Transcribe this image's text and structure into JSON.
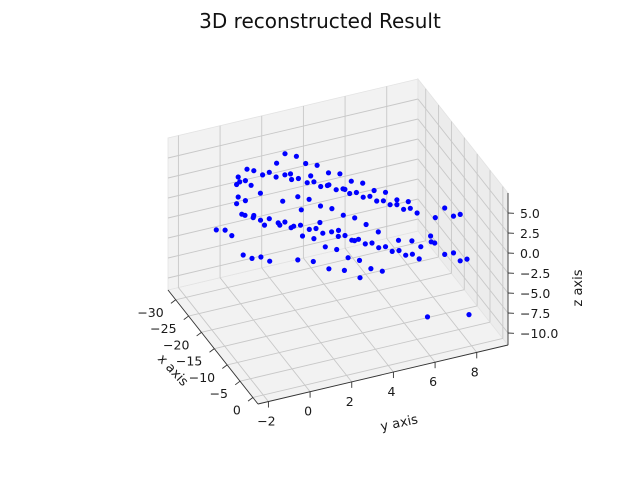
{
  "chart_data": {
    "type": "scatter",
    "projection": "3d",
    "title": "3D reconstructed Result",
    "xlabel": "x axis",
    "ylabel": "y axis",
    "zlabel": "z axis",
    "xlim": [
      -33,
      2
    ],
    "ylim": [
      -2.5,
      9.5
    ],
    "zlim": [
      -11.5,
      7.5
    ],
    "xticks": [
      "−30",
      "−25",
      "−20",
      "−15",
      "−10",
      "−5",
      "0"
    ],
    "yticks": [
      "−2",
      "0",
      "2",
      "4",
      "6",
      "8"
    ],
    "zticks": [
      "5.0",
      "2.5",
      "0.0",
      "−2.5",
      "−5.0",
      "−7.5",
      "−10.0"
    ],
    "grid": true,
    "marker_color": "#0000ff",
    "pane_color": "#f2f2f2",
    "series": [
      {
        "points": [
          [
            -29,
            0.8,
            3.2
          ],
          [
            -28,
            1.0,
            3.3
          ],
          [
            -27,
            1.3,
            3.0
          ],
          [
            -26,
            1.5,
            3.6
          ],
          [
            -25,
            1.7,
            3.3
          ],
          [
            -24,
            2.0,
            3.8
          ],
          [
            -23,
            2.2,
            3.5
          ],
          [
            -22,
            2.4,
            3.9
          ],
          [
            -21,
            2.7,
            3.6
          ],
          [
            -20,
            2.9,
            4.0
          ],
          [
            -19,
            3.1,
            3.7
          ],
          [
            -18,
            3.3,
            4.1
          ],
          [
            -17,
            3.6,
            3.8
          ],
          [
            -16,
            3.8,
            4.2
          ],
          [
            -15,
            4.0,
            3.9
          ],
          [
            -14,
            4.2,
            4.3
          ],
          [
            -13,
            4.4,
            4.0
          ],
          [
            -12,
            4.6,
            4.4
          ],
          [
            -11,
            4.8,
            4.1
          ],
          [
            -10,
            5.0,
            4.4
          ],
          [
            -9,
            5.2,
            4.2
          ],
          [
            -8,
            5.4,
            4.5
          ],
          [
            -7,
            5.6,
            4.2
          ],
          [
            -6,
            5.8,
            4.6
          ],
          [
            -5,
            6.0,
            4.3
          ],
          [
            -28,
            2.5,
            4.5
          ],
          [
            -26,
            2.8,
            4.8
          ],
          [
            -24,
            3.0,
            4.6
          ],
          [
            -22,
            3.3,
            5.0
          ],
          [
            -20,
            3.6,
            4.7
          ],
          [
            -18,
            3.9,
            5.2
          ],
          [
            -16,
            4.2,
            4.9
          ],
          [
            -14,
            4.5,
            5.3
          ],
          [
            -12,
            4.8,
            5.0
          ],
          [
            -10,
            5.1,
            5.4
          ],
          [
            -8,
            5.4,
            5.1
          ],
          [
            -6,
            5.7,
            5.5
          ],
          [
            -27,
            0.2,
            2.8
          ],
          [
            -25,
            0.5,
            3.0
          ],
          [
            -23,
            0.7,
            2.7
          ],
          [
            -19,
            2.0,
            3.1
          ],
          [
            -17,
            2.3,
            3.4
          ],
          [
            -15,
            2.6,
            3.2
          ],
          [
            -13,
            2.9,
            3.5
          ],
          [
            -11,
            3.2,
            3.3
          ],
          [
            -9,
            3.5,
            3.6
          ],
          [
            -7,
            3.8,
            3.4
          ],
          [
            -30,
            0.5,
            2.0
          ],
          [
            -29,
            0.3,
            1.6
          ],
          [
            -28,
            0.6,
            2.3
          ],
          [
            -24,
            1.6,
            5.5
          ],
          [
            -21,
            1.9,
            5.2
          ],
          [
            -18,
            2.5,
            5.8
          ],
          [
            -15,
            3.0,
            5.6
          ],
          [
            -12,
            3.4,
            6.0
          ],
          [
            -20,
            1.4,
            2.5
          ],
          [
            -16,
            1.8,
            2.8
          ],
          [
            -12,
            2.2,
            2.6
          ],
          [
            -8,
            2.6,
            3.0
          ],
          [
            -5,
            3.0,
            2.7
          ],
          [
            -4,
            7.2,
            4.6
          ],
          [
            -3,
            7.5,
            3.8
          ],
          [
            -2,
            7.7,
            4.3
          ],
          [
            -6,
            7.0,
            2.7
          ],
          [
            -3,
            6.4,
            2.0
          ],
          [
            -29,
            0.7,
            -2.5
          ],
          [
            -28,
            1.0,
            -2.3
          ],
          [
            -27,
            1.2,
            -2.6
          ],
          [
            -26,
            1.5,
            -2.2
          ],
          [
            -25,
            1.8,
            -2.5
          ],
          [
            -24,
            2.0,
            -2.1
          ],
          [
            -23,
            2.3,
            -2.4
          ],
          [
            -22,
            2.5,
            -2.0
          ],
          [
            -21,
            2.8,
            -2.3
          ],
          [
            -20,
            3.0,
            -1.9
          ],
          [
            -19,
            3.2,
            -2.2
          ],
          [
            -18,
            3.5,
            -1.8
          ],
          [
            -17,
            3.7,
            -2.1
          ],
          [
            -16,
            3.9,
            -1.7
          ],
          [
            -15,
            4.1,
            -2.0
          ],
          [
            -14,
            4.3,
            -1.6
          ],
          [
            -13,
            4.5,
            -1.9
          ],
          [
            -12,
            4.7,
            -1.5
          ],
          [
            -11,
            4.9,
            -1.8
          ],
          [
            -10,
            5.1,
            -1.4
          ],
          [
            -9,
            5.3,
            -1.7
          ],
          [
            -8,
            5.5,
            -1.3
          ],
          [
            -7,
            5.7,
            -1.6
          ],
          [
            -6,
            5.9,
            -1.2
          ],
          [
            -5,
            6.1,
            -1.5
          ],
          [
            -26,
            2.0,
            -3.3
          ],
          [
            -24,
            2.3,
            -3.0
          ],
          [
            -22,
            2.6,
            -3.4
          ],
          [
            -20,
            2.9,
            -3.1
          ],
          [
            -18,
            3.2,
            -3.5
          ],
          [
            -16,
            3.5,
            -3.2
          ],
          [
            -14,
            3.8,
            -3.6
          ],
          [
            -12,
            4.1,
            -3.3
          ],
          [
            -10,
            4.4,
            -3.7
          ],
          [
            -8,
            4.7,
            -3.4
          ],
          [
            -27,
            0.3,
            -1.3
          ],
          [
            -25,
            0.6,
            -1.1
          ],
          [
            -23,
            0.9,
            -1.4
          ],
          [
            -28,
            -0.8,
            -3.0
          ],
          [
            -27,
            -0.5,
            -2.8
          ],
          [
            -26,
            -0.3,
            -3.2
          ],
          [
            -24,
            0.0,
            -5.0
          ],
          [
            -23,
            0.3,
            -5.2
          ],
          [
            -22,
            0.6,
            -4.8
          ],
          [
            -21,
            0.9,
            -5.1
          ],
          [
            -19,
            2.0,
            -4.8
          ],
          [
            -17,
            2.5,
            -4.5
          ],
          [
            -15,
            3.0,
            -4.9
          ],
          [
            -13,
            3.5,
            -4.6
          ],
          [
            -11,
            4.0,
            -5.0
          ],
          [
            -30,
            0.5,
            -0.5
          ],
          [
            -29,
            0.3,
            -0.8
          ],
          [
            -28,
            0.6,
            -0.2
          ],
          [
            -7,
            6.0,
            0.0
          ],
          [
            -6,
            6.3,
            -0.5
          ],
          [
            -4,
            7.2,
            -1.2
          ],
          [
            -3,
            7.5,
            -0.8
          ],
          [
            -2,
            7.7,
            -1.5
          ],
          [
            -1,
            7.9,
            -1.0
          ],
          [
            -1,
            8.0,
            -8.0
          ],
          [
            -5,
            6.5,
            -9.0
          ],
          [
            -6,
            6.8,
            -0.2
          ],
          [
            -9,
            5.6,
            -0.5
          ],
          [
            -12,
            5.0,
            -0.3
          ],
          [
            -3,
            6.6,
            1.0
          ]
        ]
      }
    ]
  }
}
